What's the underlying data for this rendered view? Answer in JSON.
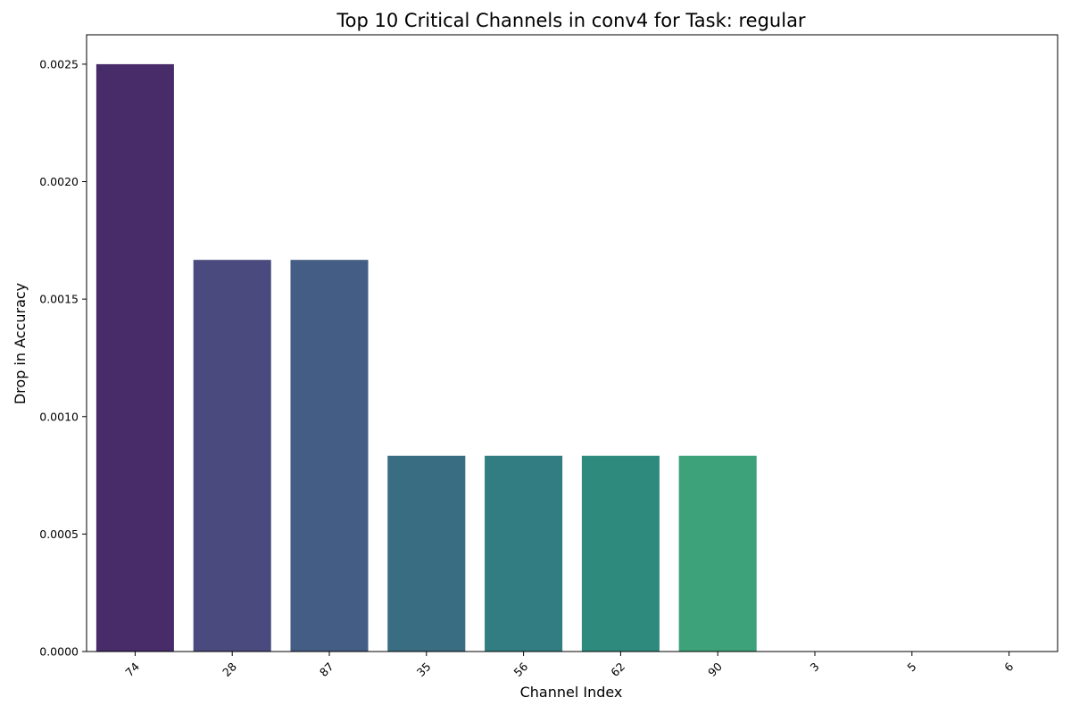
{
  "chart_data": {
    "type": "bar",
    "title": "Top 10 Critical Channels in conv4 for Task: regular",
    "xlabel": "Channel Index",
    "ylabel": "Drop in Accuracy",
    "categories": [
      "74",
      "28",
      "87",
      "35",
      "56",
      "62",
      "90",
      "3",
      "5",
      "6"
    ],
    "values": [
      0.0025,
      0.001667,
      0.001667,
      0.000833,
      0.000833,
      0.000833,
      0.000833,
      0,
      0,
      0
    ],
    "colors": [
      "#482c6a",
      "#4a4a7e",
      "#435d84",
      "#386d82",
      "#327d82",
      "#2f8a7e",
      "#3da179",
      "#4ab86c",
      "#6ccb5b",
      "#a0d93f"
    ],
    "ylim": [
      0,
      0.002625
    ],
    "yticks": [
      0.0,
      0.0005,
      0.001,
      0.0015,
      0.002,
      0.0025
    ],
    "ytick_labels": [
      "0.0000",
      "0.0005",
      "0.0010",
      "0.0015",
      "0.0020",
      "0.0025"
    ],
    "grid": false,
    "legend": "none"
  }
}
